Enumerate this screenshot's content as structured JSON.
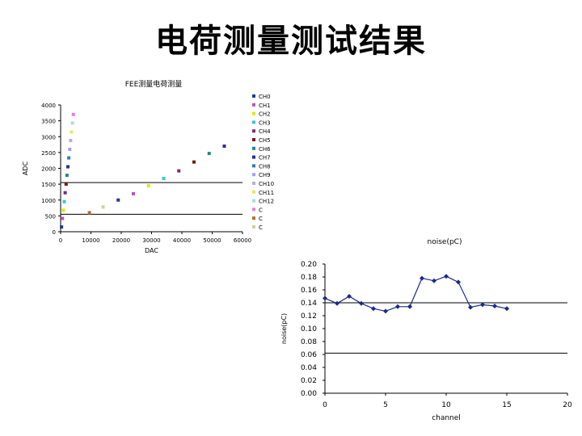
{
  "slide": {
    "title": "电荷测量测试结果"
  },
  "chart_data": [
    {
      "type": "scatter",
      "title": "FEE测量电荷测量",
      "xlabel": "DAC",
      "ylabel": "ADC",
      "xlim": [
        0,
        60000
      ],
      "ylim": [
        0,
        4000
      ],
      "x_ticks": [
        "0",
        "10000",
        "20000",
        "30000",
        "40000",
        "50000",
        "60000"
      ],
      "y_ticks": [
        "0",
        "500",
        "1000",
        "1500",
        "2000",
        "2500",
        "3000",
        "3500",
        "4000"
      ],
      "gridlines": [
        550,
        1550
      ],
      "legend_position": "right",
      "legend": [
        "CH0",
        "CH1",
        "CH2",
        "CH3",
        "CH4",
        "CH5",
        "CH6",
        "CH7",
        "CH8",
        "CH9",
        "CH10",
        "CH11",
        "CH12",
        "C",
        "C",
        "C"
      ],
      "series_colors": [
        "#1f3a93",
        "#c050c0",
        "#e6e600",
        "#33cccc",
        "#7a2a7a",
        "#7a1a1a",
        "#1a8a8a",
        "#2a2aa0",
        "#2a7ad0",
        "#a0a0ff",
        "#b0b0e0",
        "#e8e860",
        "#a0e0e0",
        "#e080e0",
        "#b07030",
        "#d0d0a0"
      ],
      "points": [
        {
          "x": 300,
          "y": 150
        },
        {
          "x": 600,
          "y": 420
        },
        {
          "x": 900,
          "y": 680
        },
        {
          "x": 1200,
          "y": 950
        },
        {
          "x": 1500,
          "y": 1230
        },
        {
          "x": 1800,
          "y": 1500
        },
        {
          "x": 2100,
          "y": 1780
        },
        {
          "x": 2400,
          "y": 2050
        },
        {
          "x": 2700,
          "y": 2330
        },
        {
          "x": 3000,
          "y": 2600
        },
        {
          "x": 3300,
          "y": 2880
        },
        {
          "x": 3600,
          "y": 3150
        },
        {
          "x": 3900,
          "y": 3430
        },
        {
          "x": 4200,
          "y": 3700
        },
        {
          "x": 9500,
          "y": 600
        },
        {
          "x": 14000,
          "y": 780
        },
        {
          "x": 19000,
          "y": 1000
        },
        {
          "x": 24000,
          "y": 1200
        },
        {
          "x": 29000,
          "y": 1450
        },
        {
          "x": 34000,
          "y": 1680
        },
        {
          "x": 39000,
          "y": 1920
        },
        {
          "x": 44000,
          "y": 2200
        },
        {
          "x": 49000,
          "y": 2470
        },
        {
          "x": 54000,
          "y": 2700
        }
      ]
    },
    {
      "type": "line",
      "title": "noise(pC)",
      "xlabel": "channel",
      "ylabel": "noise(pC)",
      "xlim": [
        0,
        20
      ],
      "ylim": [
        0,
        0.2
      ],
      "x_ticks": [
        "0",
        "5",
        "10",
        "15",
        "20"
      ],
      "y_ticks": [
        "0.00",
        "0.02",
        "0.04",
        "0.06",
        "0.08",
        "0.10",
        "0.12",
        "0.14",
        "0.16",
        "0.18",
        "0.20"
      ],
      "gridlines": [
        0.062,
        0.14
      ],
      "series_color": "#1a2a8a",
      "x": [
        0,
        1,
        2,
        3,
        4,
        5,
        6,
        7,
        8,
        9,
        10,
        11,
        12,
        13,
        14,
        15
      ],
      "values": [
        0.147,
        0.139,
        0.15,
        0.139,
        0.131,
        0.127,
        0.134,
        0.134,
        0.178,
        0.174,
        0.181,
        0.172,
        0.133,
        0.137,
        0.135,
        0.131
      ]
    }
  ]
}
